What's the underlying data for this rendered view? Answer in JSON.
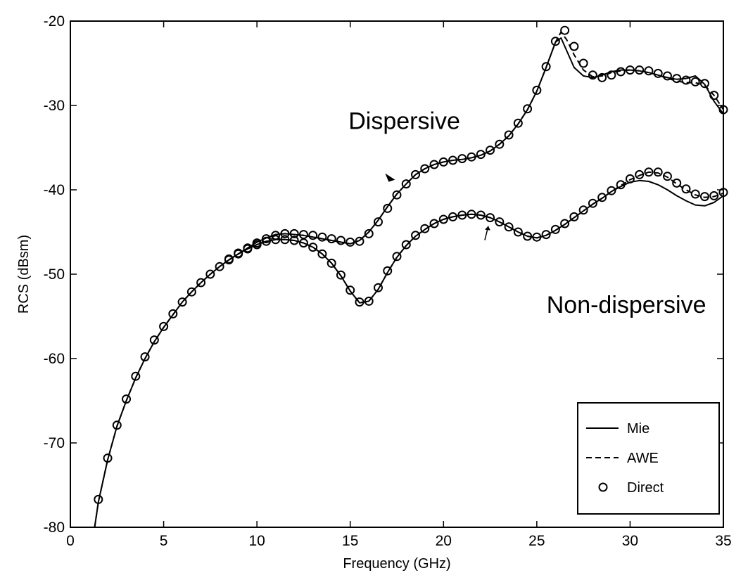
{
  "chart_data": {
    "type": "line",
    "title": "",
    "xlabel": "Frequency (GHz)",
    "ylabel": "RCS (dBsm)",
    "xlim": [
      0,
      35
    ],
    "ylim": [
      -80,
      -20
    ],
    "xticks": [
      0,
      5,
      10,
      15,
      20,
      25,
      30,
      35
    ],
    "yticks": [
      -80,
      -70,
      -60,
      -50,
      -40,
      -30,
      -20
    ],
    "xtick_labels": [
      "0",
      "5",
      "10",
      "15",
      "20",
      "25",
      "30",
      "35"
    ],
    "ytick_labels": [
      "-80",
      "-70",
      "-60",
      "-50",
      "-40",
      "-30",
      "-20"
    ],
    "grid": false,
    "legend": {
      "position": "bottom-right",
      "entries": [
        {
          "name": "Mie",
          "style": "solid"
        },
        {
          "name": "AWE",
          "style": "dashed"
        },
        {
          "name": "Direct",
          "style": "circle"
        }
      ]
    },
    "annotations": [
      {
        "text": "Dispersive",
        "x": 17.9,
        "y": -32.8,
        "arrow_to": [
          17.4,
          -38.8
        ]
      },
      {
        "text": "Non-dispersive",
        "x": 29.8,
        "y": -54.6,
        "arrow_to": [
          22.4,
          -44.3
        ]
      }
    ],
    "series": [
      {
        "name": "Mie",
        "curve": "Dispersive",
        "style": "solid",
        "x": [
          1.3,
          1.5,
          2.0,
          2.5,
          3.0,
          3.5,
          4.0,
          4.5,
          5.0,
          5.5,
          6.0,
          6.5,
          7.0,
          7.5,
          8.0,
          8.5,
          9.0,
          9.5,
          10.0,
          10.5,
          11.0,
          11.5,
          12.0,
          12.5,
          13.0,
          13.5,
          14.0,
          14.5,
          15.0,
          15.5,
          16.0,
          16.5,
          17.0,
          17.5,
          18.0,
          18.5,
          19.0,
          19.5,
          20.0,
          20.5,
          21.0,
          21.5,
          22.0,
          22.5,
          23.0,
          23.5,
          24.0,
          24.5,
          25.0,
          25.5,
          26.0,
          26.3,
          26.6,
          27.0,
          27.5,
          28.0,
          28.5,
          29.0,
          29.5,
          30.0,
          30.5,
          31.0,
          31.5,
          32.0,
          32.5,
          33.0,
          33.5,
          34.0,
          34.5,
          35.0
        ],
        "y": [
          -80.0,
          -77.0,
          -72.0,
          -68.0,
          -65.0,
          -62.3,
          -60.0,
          -58.0,
          -56.3,
          -54.8,
          -53.3,
          -52.1,
          -51.0,
          -50.0,
          -49.1,
          -48.3,
          -47.6,
          -46.9,
          -46.2,
          -45.7,
          -45.3,
          -45.2,
          -45.3,
          -45.4,
          -45.6,
          -45.8,
          -46.0,
          -46.2,
          -46.4,
          -46.0,
          -45.0,
          -43.6,
          -42.0,
          -40.5,
          -39.3,
          -38.2,
          -37.5,
          -37.0,
          -36.7,
          -36.5,
          -36.4,
          -36.2,
          -35.9,
          -35.4,
          -34.6,
          -33.6,
          -32.2,
          -30.5,
          -28.3,
          -25.5,
          -22.5,
          -22.0,
          -23.5,
          -25.5,
          -26.5,
          -26.7,
          -26.4,
          -26.0,
          -25.8,
          -25.8,
          -25.9,
          -26.1,
          -26.4,
          -26.7,
          -26.9,
          -26.8,
          -26.5,
          -27.5,
          -29.5,
          -31.0
        ]
      },
      {
        "name": "AWE",
        "curve": "Dispersive",
        "style": "dashed",
        "x": [
          1.3,
          1.5,
          2.0,
          2.5,
          3.0,
          3.5,
          4.0,
          4.5,
          5.0,
          5.5,
          6.0,
          6.5,
          7.0,
          7.5,
          8.0,
          8.5,
          9.0,
          9.5,
          10.0,
          10.5,
          11.0,
          11.5,
          12.0,
          12.5,
          13.0,
          13.5,
          14.0,
          14.5,
          15.0,
          15.5,
          16.0,
          16.5,
          17.0,
          17.5,
          18.0,
          18.5,
          19.0,
          19.5,
          20.0,
          20.5,
          21.0,
          21.5,
          22.0,
          22.5,
          23.0,
          23.5,
          24.0,
          24.5,
          25.0,
          25.5,
          26.0,
          26.3,
          26.6,
          27.0,
          27.5,
          28.0,
          28.5,
          29.0,
          29.5,
          30.0,
          30.5,
          31.0,
          31.5,
          32.0,
          32.5,
          33.0,
          33.5,
          34.0,
          34.5,
          35.0
        ],
        "y": [
          -80.0,
          -77.0,
          -72.0,
          -68.0,
          -65.0,
          -62.3,
          -60.0,
          -58.0,
          -56.3,
          -54.8,
          -53.3,
          -52.1,
          -51.0,
          -50.0,
          -49.1,
          -48.3,
          -47.6,
          -46.9,
          -46.2,
          -45.7,
          -45.3,
          -45.2,
          -45.3,
          -45.4,
          -45.6,
          -45.8,
          -46.0,
          -46.2,
          -46.4,
          -46.0,
          -45.0,
          -43.6,
          -42.0,
          -40.5,
          -39.3,
          -38.2,
          -37.5,
          -37.0,
          -36.7,
          -36.5,
          -36.4,
          -36.2,
          -35.9,
          -35.4,
          -34.6,
          -33.6,
          -32.2,
          -30.5,
          -28.3,
          -25.5,
          -22.5,
          -21.3,
          -22.2,
          -24.0,
          -25.8,
          -26.6,
          -26.5,
          -26.1,
          -25.9,
          -25.8,
          -25.9,
          -26.1,
          -26.4,
          -26.8,
          -27.1,
          -27.3,
          -27.3,
          -27.6,
          -28.8,
          -30.5
        ]
      },
      {
        "name": "Direct",
        "curve": "Dispersive",
        "style": "circle",
        "x": [
          1.5,
          2.0,
          2.5,
          3.0,
          3.5,
          4.0,
          4.5,
          5.0,
          5.5,
          6.0,
          6.5,
          7.0,
          7.5,
          8.0,
          8.5,
          9.0,
          9.5,
          10.0,
          10.5,
          11.0,
          11.5,
          12.0,
          12.5,
          13.0,
          13.5,
          14.0,
          14.5,
          15.0,
          15.5,
          16.0,
          16.5,
          17.0,
          17.5,
          18.0,
          18.5,
          19.0,
          19.5,
          20.0,
          20.5,
          21.0,
          21.5,
          22.0,
          22.5,
          23.0,
          23.5,
          24.0,
          24.5,
          25.0,
          25.5,
          26.0,
          26.5,
          27.0,
          27.5,
          28.0,
          28.5,
          29.0,
          29.5,
          30.0,
          30.5,
          31.0,
          31.5,
          32.0,
          32.5,
          33.0,
          33.5,
          34.0,
          34.5,
          35.0
        ],
        "y": [
          -76.7,
          -71.8,
          -67.9,
          -64.8,
          -62.1,
          -59.8,
          -57.8,
          -56.2,
          -54.7,
          -53.3,
          -52.1,
          -51.0,
          -50.0,
          -49.1,
          -48.3,
          -47.6,
          -46.9,
          -46.3,
          -45.8,
          -45.4,
          -45.2,
          -45.2,
          -45.3,
          -45.4,
          -45.6,
          -45.8,
          -46.0,
          -46.2,
          -46.1,
          -45.2,
          -43.8,
          -42.2,
          -40.6,
          -39.3,
          -38.2,
          -37.5,
          -37.0,
          -36.7,
          -36.5,
          -36.3,
          -36.1,
          -35.8,
          -35.3,
          -34.6,
          -33.5,
          -32.1,
          -30.4,
          -28.2,
          -25.4,
          -22.4,
          -21.1,
          -23.0,
          -25.0,
          -26.4,
          -26.7,
          -26.4,
          -26.0,
          -25.8,
          -25.8,
          -25.9,
          -26.2,
          -26.5,
          -26.8,
          -27.0,
          -27.2,
          -27.4,
          -28.8,
          -30.5
        ]
      },
      {
        "name": "Mie",
        "curve": "Non-dispersive",
        "style": "solid",
        "x": [
          8.5,
          9.0,
          9.5,
          10.0,
          10.5,
          11.0,
          11.5,
          12.0,
          12.5,
          13.0,
          13.5,
          14.0,
          14.5,
          15.0,
          15.5,
          16.0,
          16.5,
          17.0,
          17.5,
          18.0,
          18.5,
          19.0,
          19.5,
          20.0,
          20.5,
          21.0,
          21.5,
          22.0,
          22.5,
          23.0,
          23.5,
          24.0,
          24.5,
          25.0,
          25.5,
          26.0,
          26.5,
          27.0,
          27.5,
          28.0,
          28.5,
          29.0,
          29.5,
          30.0,
          30.5,
          31.0,
          31.5,
          32.0,
          32.5,
          33.0,
          33.5,
          34.0,
          34.5,
          35.0
        ],
        "y": [
          -48.3,
          -47.6,
          -47.0,
          -46.5,
          -46.1,
          -45.9,
          -45.9,
          -46.0,
          -46.3,
          -46.8,
          -47.6,
          -48.7,
          -50.2,
          -52.0,
          -53.4,
          -53.2,
          -51.8,
          -49.8,
          -48.0,
          -46.6,
          -45.5,
          -44.7,
          -44.0,
          -43.5,
          -43.2,
          -43.0,
          -42.9,
          -43.0,
          -43.3,
          -43.8,
          -44.4,
          -45.0,
          -45.5,
          -45.7,
          -45.4,
          -44.8,
          -44.1,
          -43.3,
          -42.5,
          -41.7,
          -41.0,
          -40.2,
          -39.6,
          -39.1,
          -38.9,
          -39.0,
          -39.4,
          -40.0,
          -40.7,
          -41.3,
          -41.8,
          -41.9,
          -41.5,
          -40.7
        ]
      },
      {
        "name": "AWE",
        "curve": "Non-dispersive",
        "style": "dashed",
        "x": [
          8.5,
          9.0,
          9.5,
          10.0,
          10.5,
          11.0,
          11.5,
          12.0,
          12.5,
          13.0,
          13.5,
          14.0,
          14.5,
          15.0,
          15.5,
          16.0,
          16.5,
          17.0,
          17.5,
          18.0,
          18.5,
          19.0,
          19.5,
          20.0,
          20.5,
          21.0,
          21.5,
          22.0,
          22.5,
          23.0,
          23.5,
          24.0,
          24.5,
          25.0,
          25.5,
          26.0,
          26.5,
          27.0,
          27.5,
          28.0,
          28.5,
          29.0,
          29.5,
          30.0,
          30.5,
          31.0,
          31.5,
          32.0,
          32.5,
          33.0,
          33.5,
          34.0,
          34.5,
          35.0
        ],
        "y": [
          -48.3,
          -47.6,
          -47.0,
          -46.5,
          -46.1,
          -45.9,
          -45.9,
          -46.0,
          -46.3,
          -46.8,
          -47.6,
          -48.7,
          -50.2,
          -52.0,
          -53.4,
          -53.2,
          -51.8,
          -49.8,
          -48.0,
          -46.6,
          -45.5,
          -44.7,
          -44.0,
          -43.5,
          -43.2,
          -43.0,
          -42.9,
          -43.0,
          -43.3,
          -43.8,
          -44.4,
          -45.0,
          -45.5,
          -45.7,
          -45.4,
          -44.8,
          -44.1,
          -43.3,
          -42.5,
          -41.7,
          -41.0,
          -40.2,
          -39.5,
          -38.8,
          -38.3,
          -37.9,
          -38.0,
          -38.5,
          -39.3,
          -40.0,
          -40.6,
          -40.9,
          -40.8,
          -40.4
        ]
      },
      {
        "name": "Direct",
        "curve": "Non-dispersive",
        "style": "circle",
        "x": [
          8.5,
          9.0,
          9.5,
          10.0,
          10.5,
          11.0,
          11.5,
          12.0,
          12.5,
          13.0,
          13.5,
          14.0,
          14.5,
          15.0,
          15.5,
          16.0,
          16.5,
          17.0,
          17.5,
          18.0,
          18.5,
          19.0,
          19.5,
          20.0,
          20.5,
          21.0,
          21.5,
          22.0,
          22.5,
          23.0,
          23.5,
          24.0,
          24.5,
          25.0,
          25.5,
          26.0,
          26.5,
          27.0,
          27.5,
          28.0,
          28.5,
          29.0,
          29.5,
          30.0,
          30.5,
          31.0,
          31.5,
          32.0,
          32.5,
          33.0,
          33.5,
          34.0,
          34.5,
          35.0
        ],
        "y": [
          -48.2,
          -47.5,
          -47.0,
          -46.5,
          -46.1,
          -45.9,
          -45.9,
          -46.0,
          -46.3,
          -46.8,
          -47.6,
          -48.7,
          -50.1,
          -51.9,
          -53.3,
          -53.2,
          -51.6,
          -49.6,
          -47.9,
          -46.5,
          -45.4,
          -44.6,
          -44.0,
          -43.5,
          -43.2,
          -43.0,
          -42.9,
          -43.0,
          -43.3,
          -43.8,
          -44.4,
          -45.0,
          -45.5,
          -45.6,
          -45.3,
          -44.7,
          -44.0,
          -43.2,
          -42.4,
          -41.6,
          -40.9,
          -40.1,
          -39.4,
          -38.7,
          -38.2,
          -37.9,
          -37.9,
          -38.4,
          -39.2,
          -39.9,
          -40.5,
          -40.8,
          -40.7,
          -40.3
        ]
      }
    ]
  }
}
